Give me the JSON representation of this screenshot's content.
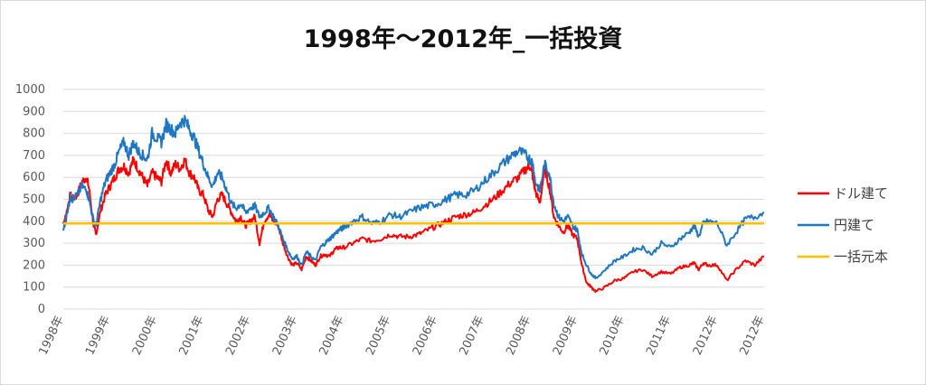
{
  "chart_data": {
    "type": "line",
    "title": "1998年～2012年_一括投資",
    "xlabel": "",
    "ylabel": "",
    "ylim": [
      0,
      1000
    ],
    "yticks": [
      "0",
      "100",
      "200",
      "300",
      "400",
      "500",
      "600",
      "700",
      "800",
      "900",
      "1000"
    ],
    "xticks": [
      "1998年",
      "1999年",
      "2000年",
      "2001年",
      "2002年",
      "2003年",
      "2004年",
      "2005年",
      "2006年",
      "2007年",
      "2008年",
      "2009年",
      "2010年",
      "2011年",
      "2012年",
      "2012年"
    ],
    "xrange": [
      1998.0,
      2013.0
    ],
    "grid": true,
    "legend_position": "right",
    "series": [
      {
        "name": "ドル建て",
        "color": "#ff0000",
        "x": [
          1998.0,
          1998.05,
          1998.1,
          1998.15,
          1998.2,
          1998.3,
          1998.4,
          1998.5,
          1998.55,
          1998.65,
          1998.7,
          1998.8,
          1998.9,
          1999.0,
          1999.1,
          1999.2,
          1999.3,
          1999.4,
          1999.5,
          1999.6,
          1999.7,
          1999.8,
          1999.9,
          2000.0,
          2000.1,
          2000.2,
          2000.3,
          2000.4,
          2000.5,
          2000.6,
          2000.7,
          2000.8,
          2000.9,
          2001.0,
          2001.1,
          2001.2,
          2001.3,
          2001.4,
          2001.5,
          2001.6,
          2001.7,
          2001.8,
          2001.9,
          2002.0,
          2002.1,
          2002.2,
          2002.3,
          2002.4,
          2002.5,
          2002.6,
          2002.7,
          2002.8,
          2002.9,
          2003.0,
          2003.1,
          2003.2,
          2003.3,
          2003.4,
          2003.5,
          2003.6,
          2003.7,
          2003.8,
          2003.9,
          2004.0,
          2004.2,
          2004.4,
          2004.6,
          2004.8,
          2005.0,
          2005.2,
          2005.4,
          2005.6,
          2005.8,
          2006.0,
          2006.2,
          2006.4,
          2006.6,
          2006.8,
          2007.0,
          2007.2,
          2007.4,
          2007.6,
          2007.75,
          2007.9,
          2008.0,
          2008.05,
          2008.1,
          2008.2,
          2008.3,
          2008.4,
          2008.5,
          2008.6,
          2008.7,
          2008.8,
          2008.9,
          2009.0,
          2009.1,
          2009.2,
          2009.3,
          2009.4,
          2009.6,
          2009.8,
          2010.0,
          2010.2,
          2010.4,
          2010.6,
          2010.8,
          2011.0,
          2011.2,
          2011.4,
          2011.5,
          2011.6,
          2011.7,
          2011.8,
          2012.0,
          2012.2,
          2012.4,
          2012.6,
          2012.8,
          2013.0
        ],
        "values": [
          390,
          420,
          470,
          520,
          500,
          520,
          580,
          600,
          550,
          380,
          340,
          450,
          520,
          560,
          600,
          640,
          650,
          620,
          680,
          640,
          600,
          560,
          620,
          600,
          580,
          680,
          620,
          660,
          640,
          680,
          620,
          600,
          540,
          520,
          450,
          420,
          500,
          520,
          480,
          440,
          400,
          420,
          380,
          400,
          420,
          300,
          400,
          430,
          400,
          380,
          300,
          240,
          200,
          210,
          180,
          240,
          220,
          200,
          240,
          250,
          240,
          270,
          280,
          280,
          300,
          320,
          310,
          320,
          340,
          330,
          330,
          340,
          360,
          380,
          400,
          420,
          430,
          440,
          470,
          500,
          540,
          580,
          600,
          640,
          650,
          600,
          540,
          480,
          640,
          560,
          420,
          380,
          350,
          380,
          340,
          320,
          200,
          120,
          100,
          80,
          100,
          130,
          140,
          170,
          180,
          150,
          170,
          160,
          190,
          200,
          210,
          180,
          210,
          200,
          200,
          130,
          180,
          220,
          200,
          240
        ]
      },
      {
        "name": "円建て",
        "color": "#1f77c4",
        "x": [
          1998.0,
          1998.05,
          1998.1,
          1998.15,
          1998.2,
          1998.3,
          1998.4,
          1998.5,
          1998.55,
          1998.65,
          1998.7,
          1998.8,
          1998.9,
          1999.0,
          1999.1,
          1999.2,
          1999.3,
          1999.4,
          1999.5,
          1999.6,
          1999.7,
          1999.8,
          1999.9,
          2000.0,
          2000.1,
          2000.2,
          2000.3,
          2000.4,
          2000.5,
          2000.6,
          2000.7,
          2000.8,
          2000.9,
          2001.0,
          2001.1,
          2001.2,
          2001.3,
          2001.4,
          2001.5,
          2001.6,
          2001.7,
          2001.8,
          2001.9,
          2002.0,
          2002.1,
          2002.2,
          2002.3,
          2002.4,
          2002.5,
          2002.6,
          2002.7,
          2002.8,
          2002.9,
          2003.0,
          2003.1,
          2003.2,
          2003.3,
          2003.4,
          2003.5,
          2003.6,
          2003.7,
          2003.8,
          2003.9,
          2004.0,
          2004.2,
          2004.4,
          2004.6,
          2004.8,
          2005.0,
          2005.2,
          2005.4,
          2005.6,
          2005.8,
          2006.0,
          2006.2,
          2006.4,
          2006.6,
          2006.8,
          2007.0,
          2007.2,
          2007.4,
          2007.6,
          2007.75,
          2007.9,
          2008.0,
          2008.05,
          2008.1,
          2008.2,
          2008.3,
          2008.4,
          2008.5,
          2008.6,
          2008.7,
          2008.8,
          2008.9,
          2009.0,
          2009.1,
          2009.2,
          2009.3,
          2009.4,
          2009.6,
          2009.8,
          2010.0,
          2010.2,
          2010.4,
          2010.6,
          2010.8,
          2011.0,
          2011.2,
          2011.4,
          2011.5,
          2011.6,
          2011.7,
          2011.8,
          2012.0,
          2012.2,
          2012.4,
          2012.6,
          2012.8,
          2013.0
        ],
        "values": [
          360,
          400,
          460,
          510,
          500,
          520,
          560,
          540,
          500,
          400,
          380,
          500,
          580,
          620,
          660,
          720,
          760,
          700,
          760,
          720,
          700,
          680,
          800,
          780,
          760,
          840,
          820,
          800,
          850,
          860,
          820,
          780,
          720,
          660,
          600,
          560,
          620,
          600,
          540,
          480,
          460,
          480,
          440,
          460,
          470,
          420,
          440,
          460,
          420,
          380,
          320,
          270,
          230,
          240,
          200,
          260,
          240,
          220,
          280,
          300,
          320,
          340,
          360,
          370,
          400,
          420,
          390,
          400,
          430,
          420,
          440,
          460,
          470,
          480,
          500,
          520,
          520,
          540,
          580,
          620,
          660,
          700,
          720,
          700,
          680,
          660,
          580,
          540,
          660,
          620,
          480,
          420,
          400,
          420,
          380,
          360,
          250,
          200,
          160,
          140,
          180,
          220,
          240,
          270,
          280,
          250,
          300,
          280,
          320,
          350,
          380,
          330,
          390,
          400,
          390,
          290,
          350,
          410,
          420,
          440
        ]
      },
      {
        "name": "一括元本",
        "color": "#ffc000",
        "x": [
          1998.0,
          2013.0
        ],
        "values": [
          390,
          390
        ]
      }
    ]
  }
}
